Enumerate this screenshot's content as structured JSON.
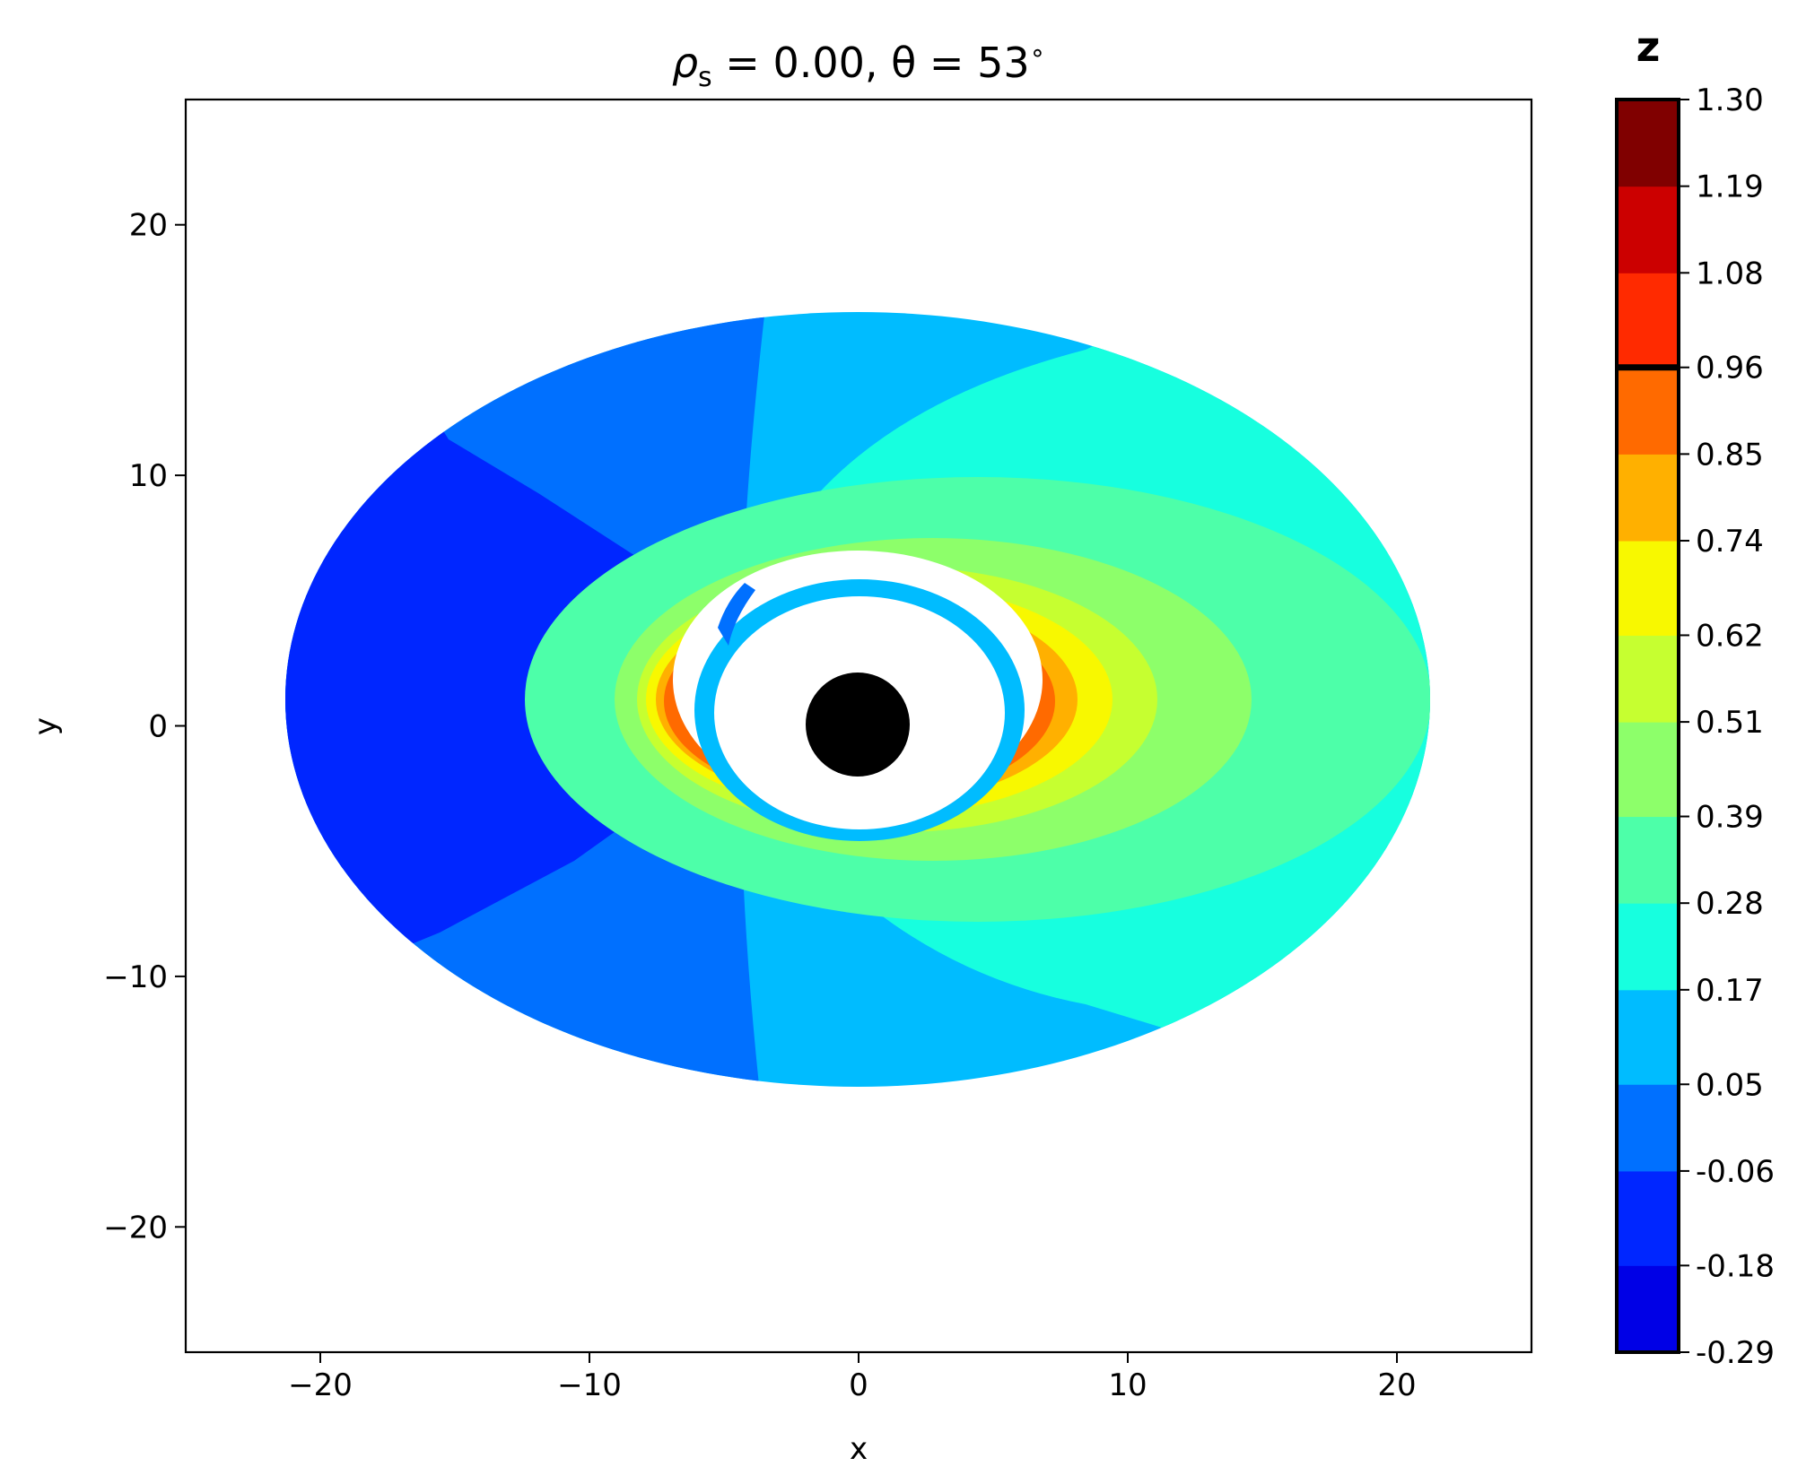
{
  "chart_data": {
    "type": "heatmap",
    "title": {
      "pre": "ρ",
      "sub": "s",
      "mid": " = 0.00,  θ = 53",
      "sup": "∘"
    },
    "xlabel": "x",
    "ylabel": "y",
    "xlim": [
      -25,
      25
    ],
    "ylim": [
      -25,
      25
    ],
    "xticks": [
      -20,
      -10,
      0,
      10,
      20
    ],
    "yticks": [
      -20,
      -10,
      0,
      10,
      20
    ],
    "xtick_labels": [
      "−20",
      "−10",
      "0",
      "10",
      "20"
    ],
    "ytick_labels": [
      "−20",
      "−10",
      "0",
      "10",
      "20"
    ],
    "colorbar": {
      "label": "z",
      "levels": [
        -0.29,
        -0.18,
        -0.06,
        0.05,
        0.17,
        0.28,
        0.39,
        0.51,
        0.62,
        0.74,
        0.85,
        0.96,
        1.08,
        1.19,
        1.3
      ],
      "tick_labels": [
        "-0.29",
        "-0.18",
        "-0.06",
        "0.05",
        "0.17",
        "0.28",
        "0.39",
        "0.51",
        "0.62",
        "0.74",
        "0.85",
        "0.96",
        "1.08",
        "1.19",
        "1.30"
      ],
      "colors": [
        "#0000e6",
        "#0026ff",
        "#0070ff",
        "#00bcff",
        "#17ffdf",
        "#4dffa9",
        "#8dff6a",
        "#c6ff30",
        "#f8f800",
        "#ffb000",
        "#ff6a00",
        "#ff2a00",
        "#cc0000",
        "#800000"
      ],
      "marked_level": 0.96
    },
    "disk": {
      "outer_x": [
        -21.3,
        21.3
      ],
      "outer_y": [
        -12.3,
        16.7
      ],
      "center": [
        0,
        1.0
      ]
    },
    "shadow": {
      "center": [
        0,
        0
      ],
      "radius": 2.1,
      "color": "#000000"
    }
  }
}
